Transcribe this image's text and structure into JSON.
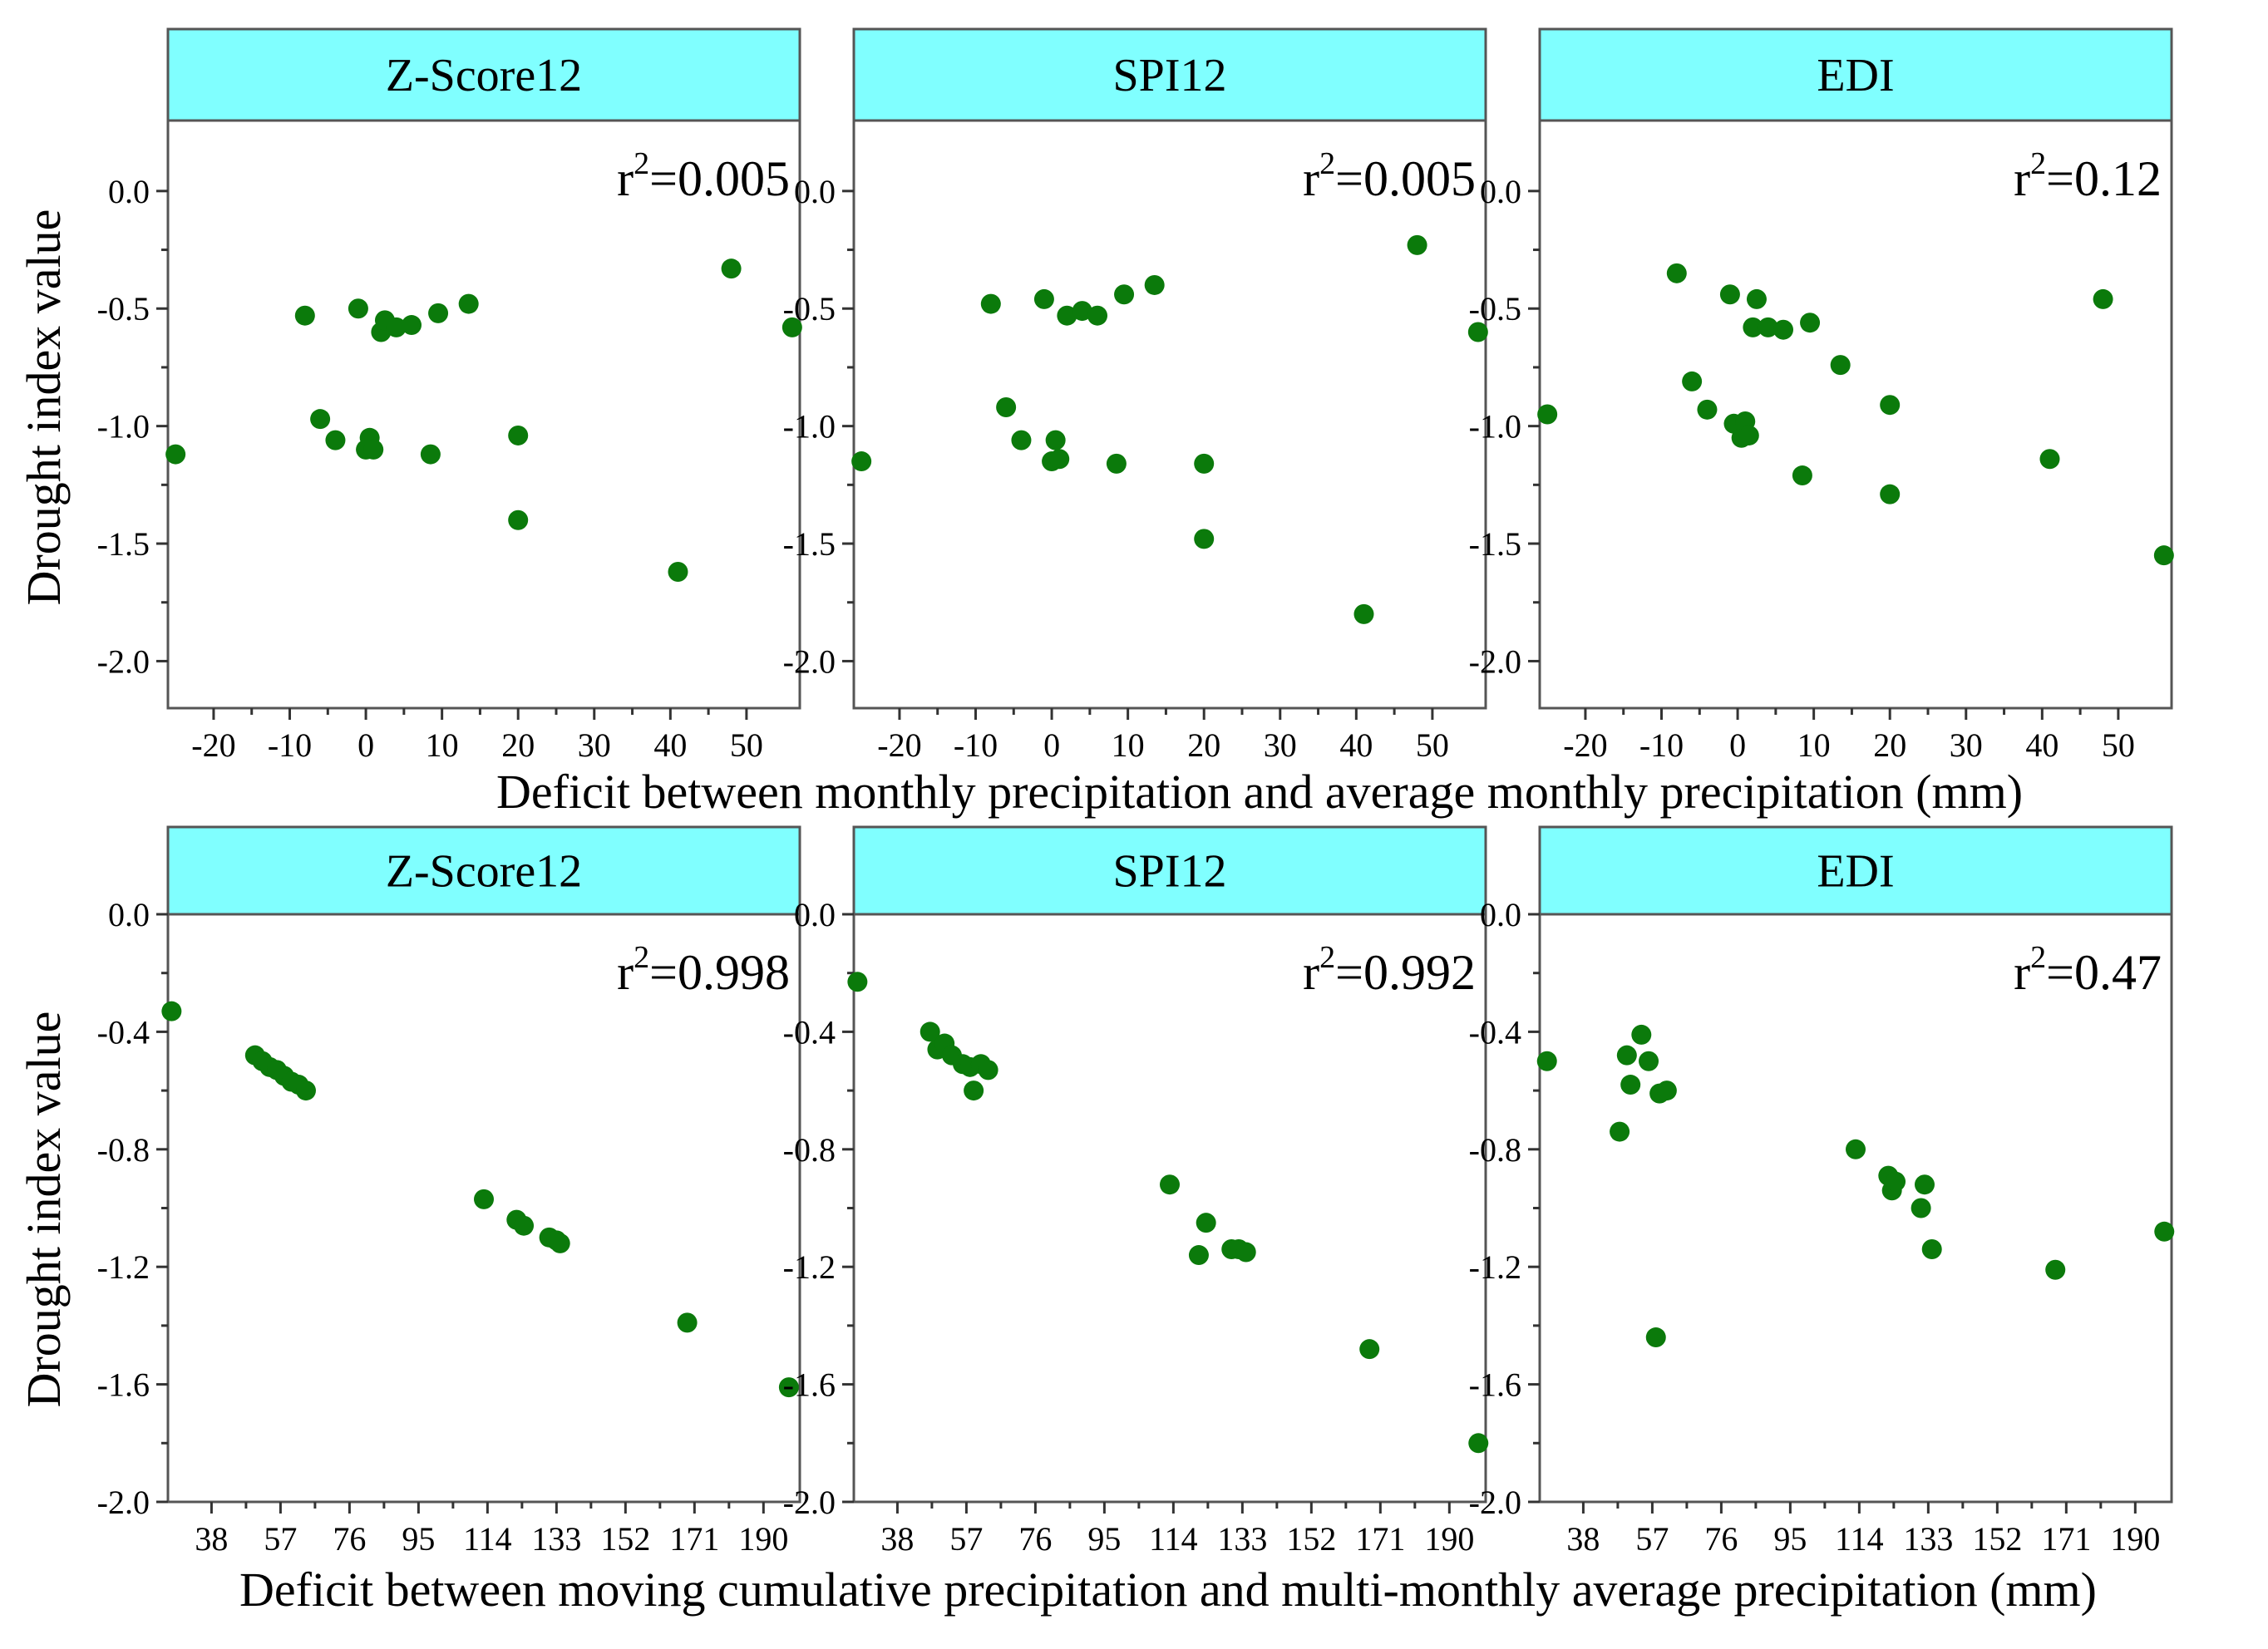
{
  "colors": {
    "marker": "#0b7a0b",
    "strip": "#80FFFF",
    "frame": "#555555"
  },
  "figure": {
    "row1_xlabel": "Deficit between monthly precipitation and average monthly precipitation (mm)",
    "row2_xlabel": "Deficit between moving cumulative precipitation and multi-monthly average precipitation (mm)",
    "ylabel": "Drought index value"
  },
  "chart_data": [
    {
      "type": "scatter",
      "title": "Z-Score12",
      "r2_base": "r",
      "r2_sup": "2",
      "r2_value": "=0.005",
      "xlim": [
        -26,
        57
      ],
      "ylim": [
        -2.2,
        0.3
      ],
      "xticks": [
        -20,
        -10,
        0,
        10,
        20,
        30,
        40,
        50
      ],
      "xtick_labels": [
        "-20",
        "-10",
        "0",
        "10",
        "20",
        "30",
        "40",
        "50"
      ],
      "yticks": [
        0.0,
        -0.5,
        -1.0,
        -1.5,
        -2.0
      ],
      "ytick_labels": [
        "0.0",
        "-0.5",
        "-1.0",
        "-1.5",
        "-2.0"
      ],
      "x": [
        -25,
        -8,
        -6,
        -4,
        -1,
        0,
        0.5,
        1,
        2,
        2.5,
        4,
        6,
        8.5,
        9.5,
        13.5,
        20,
        20,
        41,
        48,
        56
      ],
      "y": [
        -1.12,
        -0.53,
        -0.97,
        -1.06,
        -0.5,
        -1.1,
        -1.05,
        -1.1,
        -0.6,
        -0.55,
        -0.58,
        -0.57,
        -1.12,
        -0.52,
        -0.48,
        -1.04,
        -1.4,
        -1.62,
        -0.33,
        -0.58
      ]
    },
    {
      "type": "scatter",
      "title": "SPI12",
      "r2_base": "r",
      "r2_sup": "2",
      "r2_value": "=0.005",
      "xlim": [
        -26,
        57
      ],
      "ylim": [
        -2.2,
        0.3
      ],
      "xticks": [
        -20,
        -10,
        0,
        10,
        20,
        30,
        40,
        50
      ],
      "xtick_labels": [
        "-20",
        "-10",
        "0",
        "10",
        "20",
        "30",
        "40",
        "50"
      ],
      "yticks": [
        0.0,
        -0.5,
        -1.0,
        -1.5,
        -2.0
      ],
      "ytick_labels": [
        "0.0",
        "-0.5",
        "-1.0",
        "-1.5",
        "-2.0"
      ],
      "x": [
        -25,
        -8,
        -6,
        -4,
        -1,
        0,
        0.5,
        1,
        2,
        4,
        6,
        8.5,
        9.5,
        13.5,
        20,
        20,
        41,
        48,
        56
      ],
      "y": [
        -1.15,
        -0.48,
        -0.92,
        -1.06,
        -0.46,
        -1.15,
        -1.06,
        -1.14,
        -0.53,
        -0.51,
        -0.53,
        -1.16,
        -0.44,
        -0.4,
        -1.16,
        -1.48,
        -1.8,
        -0.23,
        -0.6
      ]
    },
    {
      "type": "scatter",
      "title": "EDI",
      "r2_base": "r",
      "r2_sup": "2",
      "r2_value": "=0.12",
      "xlim": [
        -26,
        57
      ],
      "ylim": [
        -2.2,
        0.3
      ],
      "xticks": [
        -20,
        -10,
        0,
        10,
        20,
        30,
        40,
        50
      ],
      "xtick_labels": [
        "-20",
        "-10",
        "0",
        "10",
        "20",
        "30",
        "40",
        "50"
      ],
      "yticks": [
        0.0,
        -0.5,
        -1.0,
        -1.5,
        -2.0
      ],
      "ytick_labels": [
        "0.0",
        "-0.5",
        "-1.0",
        "-1.5",
        "-2.0"
      ],
      "x": [
        -25,
        -8,
        -6,
        -4,
        -1,
        -0.5,
        0.5,
        1,
        1.5,
        2,
        2.5,
        4,
        6,
        8.5,
        9.5,
        13.5,
        20,
        20,
        41,
        48,
        56
      ],
      "y": [
        -0.95,
        -0.35,
        -0.81,
        -0.93,
        -0.44,
        -0.99,
        -1.05,
        -0.98,
        -1.04,
        -0.58,
        -0.46,
        -0.58,
        -0.59,
        -1.21,
        -0.56,
        -0.74,
        -0.91,
        -1.29,
        -1.14,
        -0.46,
        -1.55
      ]
    },
    {
      "type": "scatter",
      "title": "Z-Score12",
      "r2_base": "r",
      "r2_sup": "2",
      "r2_value": "=0.998",
      "xlim": [
        26,
        200
      ],
      "ylim": [
        -2.0,
        0.0
      ],
      "xticks": [
        38,
        57,
        76,
        95,
        114,
        133,
        152,
        171,
        190
      ],
      "xtick_labels": [
        "38",
        "57",
        "76",
        "95",
        "114",
        "133",
        "152",
        "171",
        "190"
      ],
      "yticks": [
        0.0,
        -0.4,
        -0.8,
        -1.2,
        -1.6,
        -2.0
      ],
      "ytick_labels": [
        "0.0",
        "-0.4",
        "-0.8",
        "-1.2",
        "-1.6",
        "-2.0"
      ],
      "x": [
        27,
        50,
        52,
        54,
        56,
        58,
        60,
        62,
        64,
        113,
        122,
        124,
        131,
        133,
        134,
        169,
        197
      ],
      "y": [
        -0.33,
        -0.48,
        -0.5,
        -0.52,
        -0.53,
        -0.55,
        -0.57,
        -0.58,
        -0.6,
        -0.97,
        -1.04,
        -1.06,
        -1.1,
        -1.11,
        -1.12,
        -1.39,
        -1.61
      ]
    },
    {
      "type": "scatter",
      "title": "SPI12",
      "r2_base": "r",
      "r2_sup": "2",
      "r2_value": "=0.992",
      "xlim": [
        26,
        200
      ],
      "ylim": [
        -2.0,
        0.0
      ],
      "xticks": [
        38,
        57,
        76,
        95,
        114,
        133,
        152,
        171,
        190
      ],
      "xtick_labels": [
        "38",
        "57",
        "76",
        "95",
        "114",
        "133",
        "152",
        "171",
        "190"
      ],
      "yticks": [
        0.0,
        -0.4,
        -0.8,
        -1.2,
        -1.6,
        -2.0
      ],
      "ytick_labels": [
        "0.0",
        "-0.4",
        "-0.8",
        "-1.2",
        "-1.6",
        "-2.0"
      ],
      "x": [
        27,
        47,
        49,
        51,
        53,
        56,
        58,
        59,
        61,
        63,
        113,
        121,
        123,
        130,
        132,
        134,
        168,
        198
      ],
      "y": [
        -0.23,
        -0.4,
        -0.46,
        -0.44,
        -0.48,
        -0.51,
        -0.52,
        -0.6,
        -0.51,
        -0.53,
        -0.92,
        -1.16,
        -1.05,
        -1.14,
        -1.14,
        -1.15,
        -1.48,
        -1.8
      ]
    },
    {
      "type": "scatter",
      "title": "EDI",
      "r2_base": "r",
      "r2_sup": "2",
      "r2_value": "=0.47",
      "xlim": [
        26,
        200
      ],
      "ylim": [
        -2.0,
        0.0
      ],
      "xticks": [
        38,
        57,
        76,
        95,
        114,
        133,
        152,
        171,
        190
      ],
      "xtick_labels": [
        "38",
        "57",
        "76",
        "95",
        "114",
        "133",
        "152",
        "171",
        "190"
      ],
      "yticks": [
        0.0,
        -0.4,
        -0.8,
        -1.2,
        -1.6,
        -2.0
      ],
      "ytick_labels": [
        "0.0",
        "-0.4",
        "-0.8",
        "-1.2",
        "-1.6",
        "-2.0"
      ],
      "x": [
        28,
        48,
        50,
        51,
        54,
        56,
        58,
        59,
        61,
        113,
        122,
        123,
        124,
        131,
        132,
        134,
        168,
        198
      ],
      "y": [
        -0.5,
        -0.74,
        -0.48,
        -0.58,
        -0.41,
        -0.5,
        -1.44,
        -0.61,
        -0.6,
        -0.8,
        -0.89,
        -0.94,
        -0.91,
        -1.0,
        -0.92,
        -1.14,
        -1.21,
        -1.08
      ]
    }
  ]
}
